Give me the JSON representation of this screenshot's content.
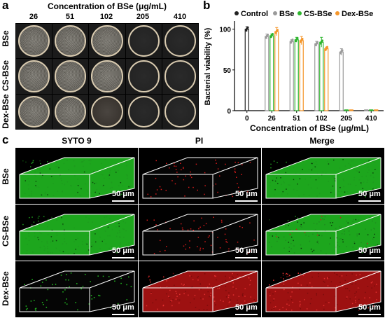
{
  "panel_a": {
    "letter": "a",
    "title": "Concentration of BSe (μg/mL)",
    "concentrations": [
      "26",
      "51",
      "102",
      "205",
      "410"
    ],
    "rows": [
      {
        "label": "BSe",
        "dishes": [
          "turbid",
          "turbid",
          "turbid",
          "clear",
          "clear"
        ]
      },
      {
        "label": "CS-BSe",
        "dishes": [
          "turbid",
          "turbid",
          "turbid",
          "clear",
          "clear"
        ]
      },
      {
        "label": "Dex-BSe",
        "dishes": [
          "turbid",
          "turbid",
          "faint",
          "clear",
          "clear"
        ]
      }
    ]
  },
  "chart_data": {
    "letter": "b",
    "type": "bar",
    "ylabel": "Bacterial viability (%)",
    "xlabel": "Concentration of BSe  (μg/mL)",
    "categories": [
      "0",
      "26",
      "51",
      "102",
      "205",
      "410"
    ],
    "ylim": [
      0,
      100
    ],
    "yticks": [
      0,
      50,
      100
    ],
    "legend_position": "top",
    "series": [
      {
        "name": "Control",
        "color": "#222222",
        "values": [
          100,
          null,
          null,
          null,
          null,
          null
        ],
        "errors": [
          3,
          null,
          null,
          null,
          null,
          null
        ]
      },
      {
        "name": "BSe",
        "color": "#9a9a9a",
        "values": [
          null,
          91,
          85,
          82,
          72,
          1
        ],
        "errors": [
          null,
          3,
          2,
          3,
          4,
          0.5
        ]
      },
      {
        "name": "CS-BSe",
        "color": "#2db52d",
        "values": [
          null,
          92,
          87,
          84,
          1,
          1
        ],
        "errors": [
          null,
          2,
          3,
          6,
          0.5,
          0.5
        ]
      },
      {
        "name": "Dex-BSe",
        "color": "#f5962a",
        "values": [
          null,
          97,
          86,
          76,
          1,
          1
        ],
        "errors": [
          null,
          5,
          5,
          2,
          0.5,
          0.5
        ]
      }
    ]
  },
  "panel_c": {
    "letter": "c",
    "columns": [
      "SYTO 9",
      "PI",
      "Merge"
    ],
    "rows": [
      {
        "label": "BSe",
        "cells": [
          "green",
          "sparse-red",
          "green"
        ]
      },
      {
        "label": "CS-BSe",
        "cells": [
          "green",
          "sparse-red",
          "green-mixed"
        ]
      },
      {
        "label": "Dex-BSe",
        "cells": [
          "sparse-green",
          "red",
          "red"
        ]
      }
    ],
    "scale_bar": "50 μm"
  },
  "colors": {
    "live_stain": "#22c322",
    "dead_stain": "#d61a1a",
    "background": "#000000"
  }
}
